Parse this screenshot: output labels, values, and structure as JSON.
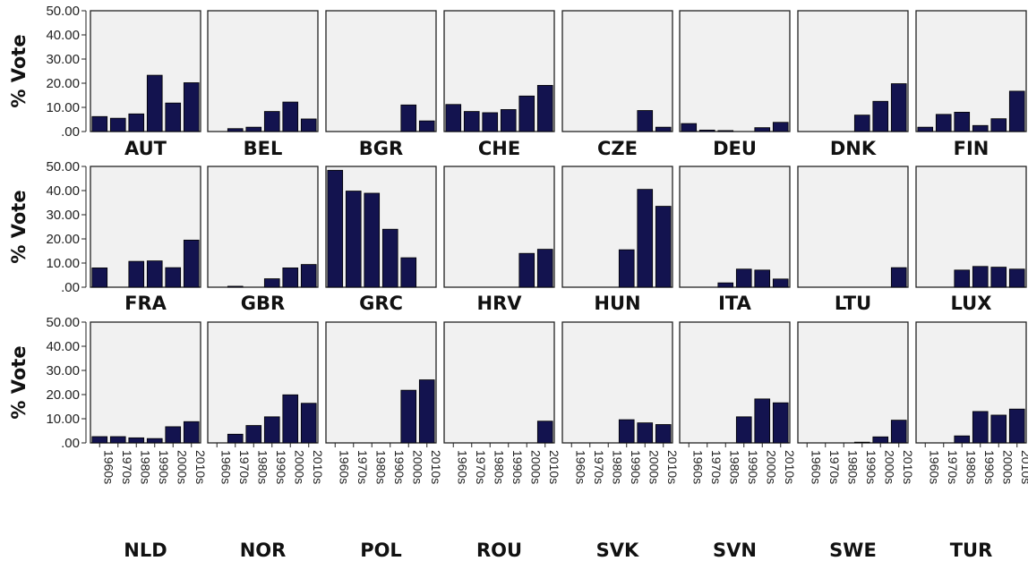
{
  "chart_data": {
    "type": "bar",
    "layout": "small-multiples",
    "ylabel": "% Vote",
    "y_tick_labels": [
      "50.00",
      "40.00",
      "30.00",
      "20.00",
      "10.00",
      ".00"
    ],
    "ylim": [
      0,
      50
    ],
    "categories": [
      "1960s",
      "1970s",
      "1980s",
      "1990s",
      "2000s",
      "2010s"
    ],
    "bar_color": "#13134f",
    "panel_background": "#f1f1f1",
    "panels": [
      {
        "name": "AUT",
        "values": [
          6.2,
          5.5,
          7.3,
          23.3,
          11.8,
          20.2
        ]
      },
      {
        "name": "BEL",
        "values": [
          0,
          1.2,
          1.8,
          8.3,
          12.2,
          5.2
        ]
      },
      {
        "name": "BGR",
        "values": [
          0,
          0,
          0,
          0,
          11.0,
          4.4
        ]
      },
      {
        "name": "CHE",
        "values": [
          11.2,
          8.3,
          7.8,
          9.1,
          14.7,
          19.1
        ]
      },
      {
        "name": "CZE",
        "values": [
          0,
          0,
          0,
          0,
          8.7,
          1.8
        ]
      },
      {
        "name": "DEU",
        "values": [
          3.3,
          0.6,
          0.4,
          0,
          1.6,
          3.8
        ]
      },
      {
        "name": "DNK",
        "values": [
          0,
          0,
          0,
          6.8,
          12.5,
          19.8
        ]
      },
      {
        "name": "FIN",
        "values": [
          1.8,
          7.1,
          8.0,
          2.5,
          5.3,
          16.7
        ]
      },
      {
        "name": "FRA",
        "values": [
          8.0,
          0,
          10.7,
          10.9,
          8.1,
          19.5
        ]
      },
      {
        "name": "GBR",
        "values": [
          0,
          0.4,
          0,
          3.5,
          8.0,
          9.4
        ]
      },
      {
        "name": "GRC",
        "values": [
          48.4,
          39.8,
          38.9,
          24.0,
          12.2,
          0
        ]
      },
      {
        "name": "HRV",
        "values": [
          0,
          0,
          0,
          0,
          14.0,
          15.7
        ]
      },
      {
        "name": "HUN",
        "values": [
          0,
          0,
          0,
          15.5,
          40.5,
          33.5
        ]
      },
      {
        "name": "ITA",
        "values": [
          0,
          0,
          1.8,
          7.5,
          7.1,
          3.4
        ]
      },
      {
        "name": "LTU",
        "values": [
          0,
          0,
          0,
          0,
          0,
          8.1
        ]
      },
      {
        "name": "LUX",
        "values": [
          0,
          0,
          7.1,
          8.6,
          8.3,
          7.5
        ]
      },
      {
        "name": "NLD",
        "values": [
          2.6,
          2.6,
          2.1,
          1.8,
          6.7,
          8.8
        ]
      },
      {
        "name": "NOR",
        "values": [
          0,
          3.6,
          7.2,
          10.8,
          19.9,
          16.4
        ]
      },
      {
        "name": "POL",
        "values": [
          0,
          0,
          0,
          0,
          21.8,
          26.1
        ]
      },
      {
        "name": "ROU",
        "values": [
          0,
          0,
          0,
          0,
          0,
          9.0
        ]
      },
      {
        "name": "SVK",
        "values": [
          0,
          0,
          0,
          9.6,
          8.3,
          7.6
        ]
      },
      {
        "name": "SVN",
        "values": [
          0,
          0,
          0,
          10.8,
          18.2,
          16.6
        ]
      },
      {
        "name": "SWE",
        "values": [
          0,
          0,
          0,
          0.3,
          2.5,
          9.4
        ]
      },
      {
        "name": "TUR",
        "values": [
          0,
          0,
          2.9,
          13.0,
          11.5,
          14.0
        ]
      }
    ]
  }
}
